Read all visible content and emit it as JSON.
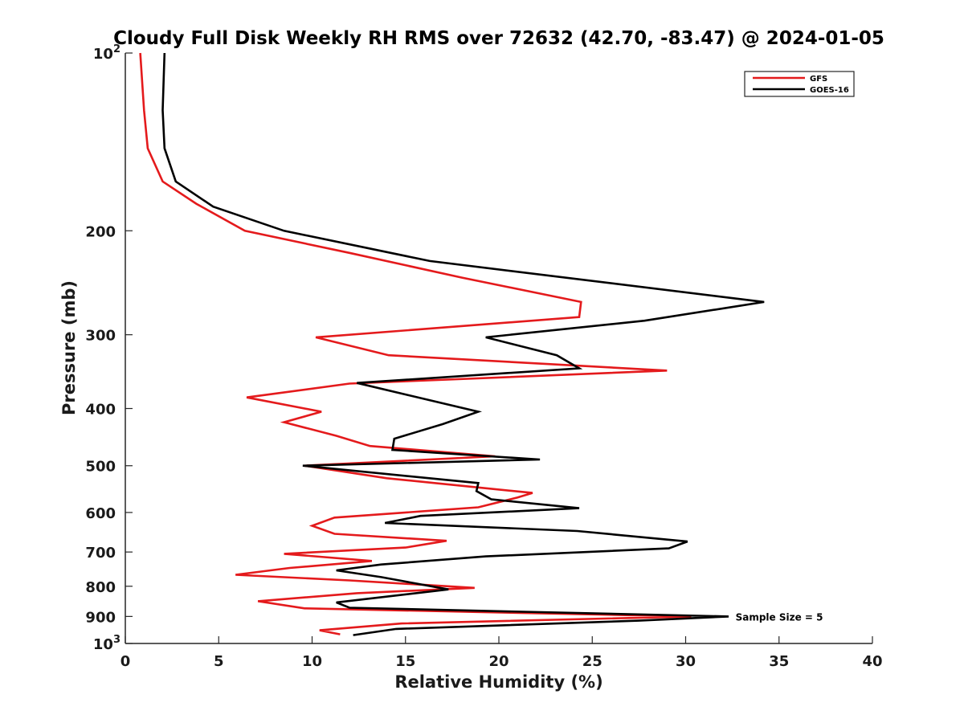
{
  "chart_data": {
    "type": "line",
    "title": "Cloudy Full Disk Weekly RH RMS over 72632 (42.70, -83.47) @ 2024-01-05",
    "xlabel": "Relative Humidity (%)",
    "ylabel": "Pressure (mb)",
    "xlim": [
      0,
      40
    ],
    "ylim": [
      100,
      1000
    ],
    "yscale": "log",
    "y_reversed": true,
    "grid": false,
    "legend_position": "top-right",
    "x_ticks": [
      0,
      5,
      10,
      15,
      20,
      25,
      30,
      35,
      40
    ],
    "x_tick_labels": [
      "0",
      "5",
      "10",
      "15",
      "20",
      "25",
      "30",
      "35",
      "40"
    ],
    "y_ticks": [
      200,
      300,
      400,
      500,
      600,
      700,
      800,
      900
    ],
    "y_tick_labels": [
      "200",
      "300",
      "400",
      "500",
      "600",
      "700",
      "800",
      "900"
    ],
    "y_tick_base_labels": [
      {
        "value": 100,
        "base": "10",
        "exp": "2"
      },
      {
        "value": 1000,
        "base": "10",
        "exp": "3"
      }
    ],
    "annotation": {
      "text": "Sample Size = 5",
      "x": 32.5,
      "y": 900
    },
    "series": [
      {
        "name": "GFS",
        "color": "#e41a1c",
        "points": [
          [
            0.8,
            100
          ],
          [
            1.0,
            125
          ],
          [
            1.2,
            145
          ],
          [
            2.0,
            165
          ],
          [
            3.8,
            180
          ],
          [
            6.4,
            200
          ],
          [
            12.0,
            218
          ],
          [
            18.0,
            240
          ],
          [
            24.4,
            264
          ],
          [
            24.3,
            280
          ],
          [
            10.2,
            303
          ],
          [
            14.1,
            325
          ],
          [
            29.0,
            345
          ],
          [
            12.0,
            363
          ],
          [
            6.5,
            383
          ],
          [
            10.5,
            405
          ],
          [
            8.5,
            422
          ],
          [
            11.3,
            445
          ],
          [
            13.1,
            463
          ],
          [
            19.8,
            482
          ],
          [
            9.6,
            500
          ],
          [
            14.0,
            525
          ],
          [
            21.8,
            556
          ],
          [
            21.0,
            566
          ],
          [
            18.9,
            588
          ],
          [
            11.2,
            612
          ],
          [
            10.0,
            632
          ],
          [
            11.2,
            652
          ],
          [
            17.2,
            670
          ],
          [
            15.0,
            688
          ],
          [
            8.5,
            705
          ],
          [
            13.2,
            725
          ],
          [
            8.8,
            745
          ],
          [
            5.9,
            765
          ],
          [
            12.0,
            782
          ],
          [
            18.7,
            805
          ],
          [
            12.4,
            822
          ],
          [
            7.1,
            848
          ],
          [
            9.6,
            872
          ],
          [
            30.3,
            900
          ],
          [
            14.8,
            925
          ],
          [
            10.4,
            950
          ],
          [
            11.5,
            965
          ]
        ]
      },
      {
        "name": "GOES-16",
        "color": "#000000",
        "points": [
          [
            2.1,
            100
          ],
          [
            2.0,
            125
          ],
          [
            2.1,
            145
          ],
          [
            2.7,
            165
          ],
          [
            4.7,
            182
          ],
          [
            8.5,
            200
          ],
          [
            16.3,
            225
          ],
          [
            34.2,
            264
          ],
          [
            27.8,
            284
          ],
          [
            19.3,
            303
          ],
          [
            23.1,
            325
          ],
          [
            24.3,
            342
          ],
          [
            12.4,
            362
          ],
          [
            18.9,
            405
          ],
          [
            17.0,
            425
          ],
          [
            14.4,
            450
          ],
          [
            14.3,
            470
          ],
          [
            22.2,
            488
          ],
          [
            9.5,
            500
          ],
          [
            18.9,
            535
          ],
          [
            18.8,
            552
          ],
          [
            19.6,
            570
          ],
          [
            24.3,
            590
          ],
          [
            15.8,
            608
          ],
          [
            13.9,
            625
          ],
          [
            24.2,
            645
          ],
          [
            30.1,
            672
          ],
          [
            29.1,
            690
          ],
          [
            19.3,
            712
          ],
          [
            13.7,
            735
          ],
          [
            11.3,
            752
          ],
          [
            13.7,
            772
          ],
          [
            17.3,
            810
          ],
          [
            11.3,
            852
          ],
          [
            12.0,
            870
          ],
          [
            32.3,
            900
          ],
          [
            27.5,
            915
          ],
          [
            14.5,
            945
          ],
          [
            12.2,
            968
          ]
        ]
      }
    ]
  }
}
